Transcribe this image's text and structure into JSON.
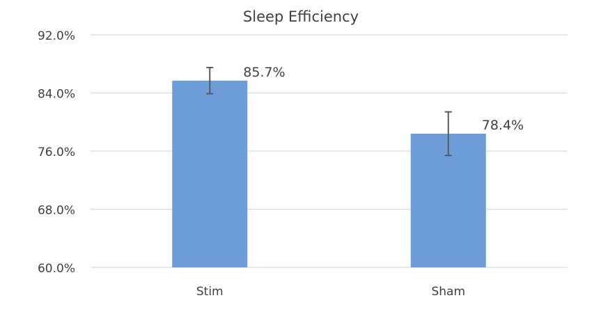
{
  "chart_data": {
    "type": "bar",
    "title": "Sleep Efficiency",
    "categories": [
      "Stim",
      "Sham"
    ],
    "values": [
      85.7,
      78.4
    ],
    "data_labels": [
      "85.7%",
      "78.4%"
    ],
    "error": [
      1.8,
      3.0
    ],
    "xlabel": "",
    "ylabel": "",
    "ylim": [
      60,
      92
    ],
    "yticks": [
      60,
      68,
      76,
      84,
      92
    ],
    "ytick_labels": [
      "60.0%",
      "68.0%",
      "76.0%",
      "84.0%",
      "92.0%"
    ],
    "grid": true,
    "legend": "none",
    "bar_color": "#6d9eda",
    "error_color": "#595959",
    "grid_color": "#d9d9d9"
  }
}
